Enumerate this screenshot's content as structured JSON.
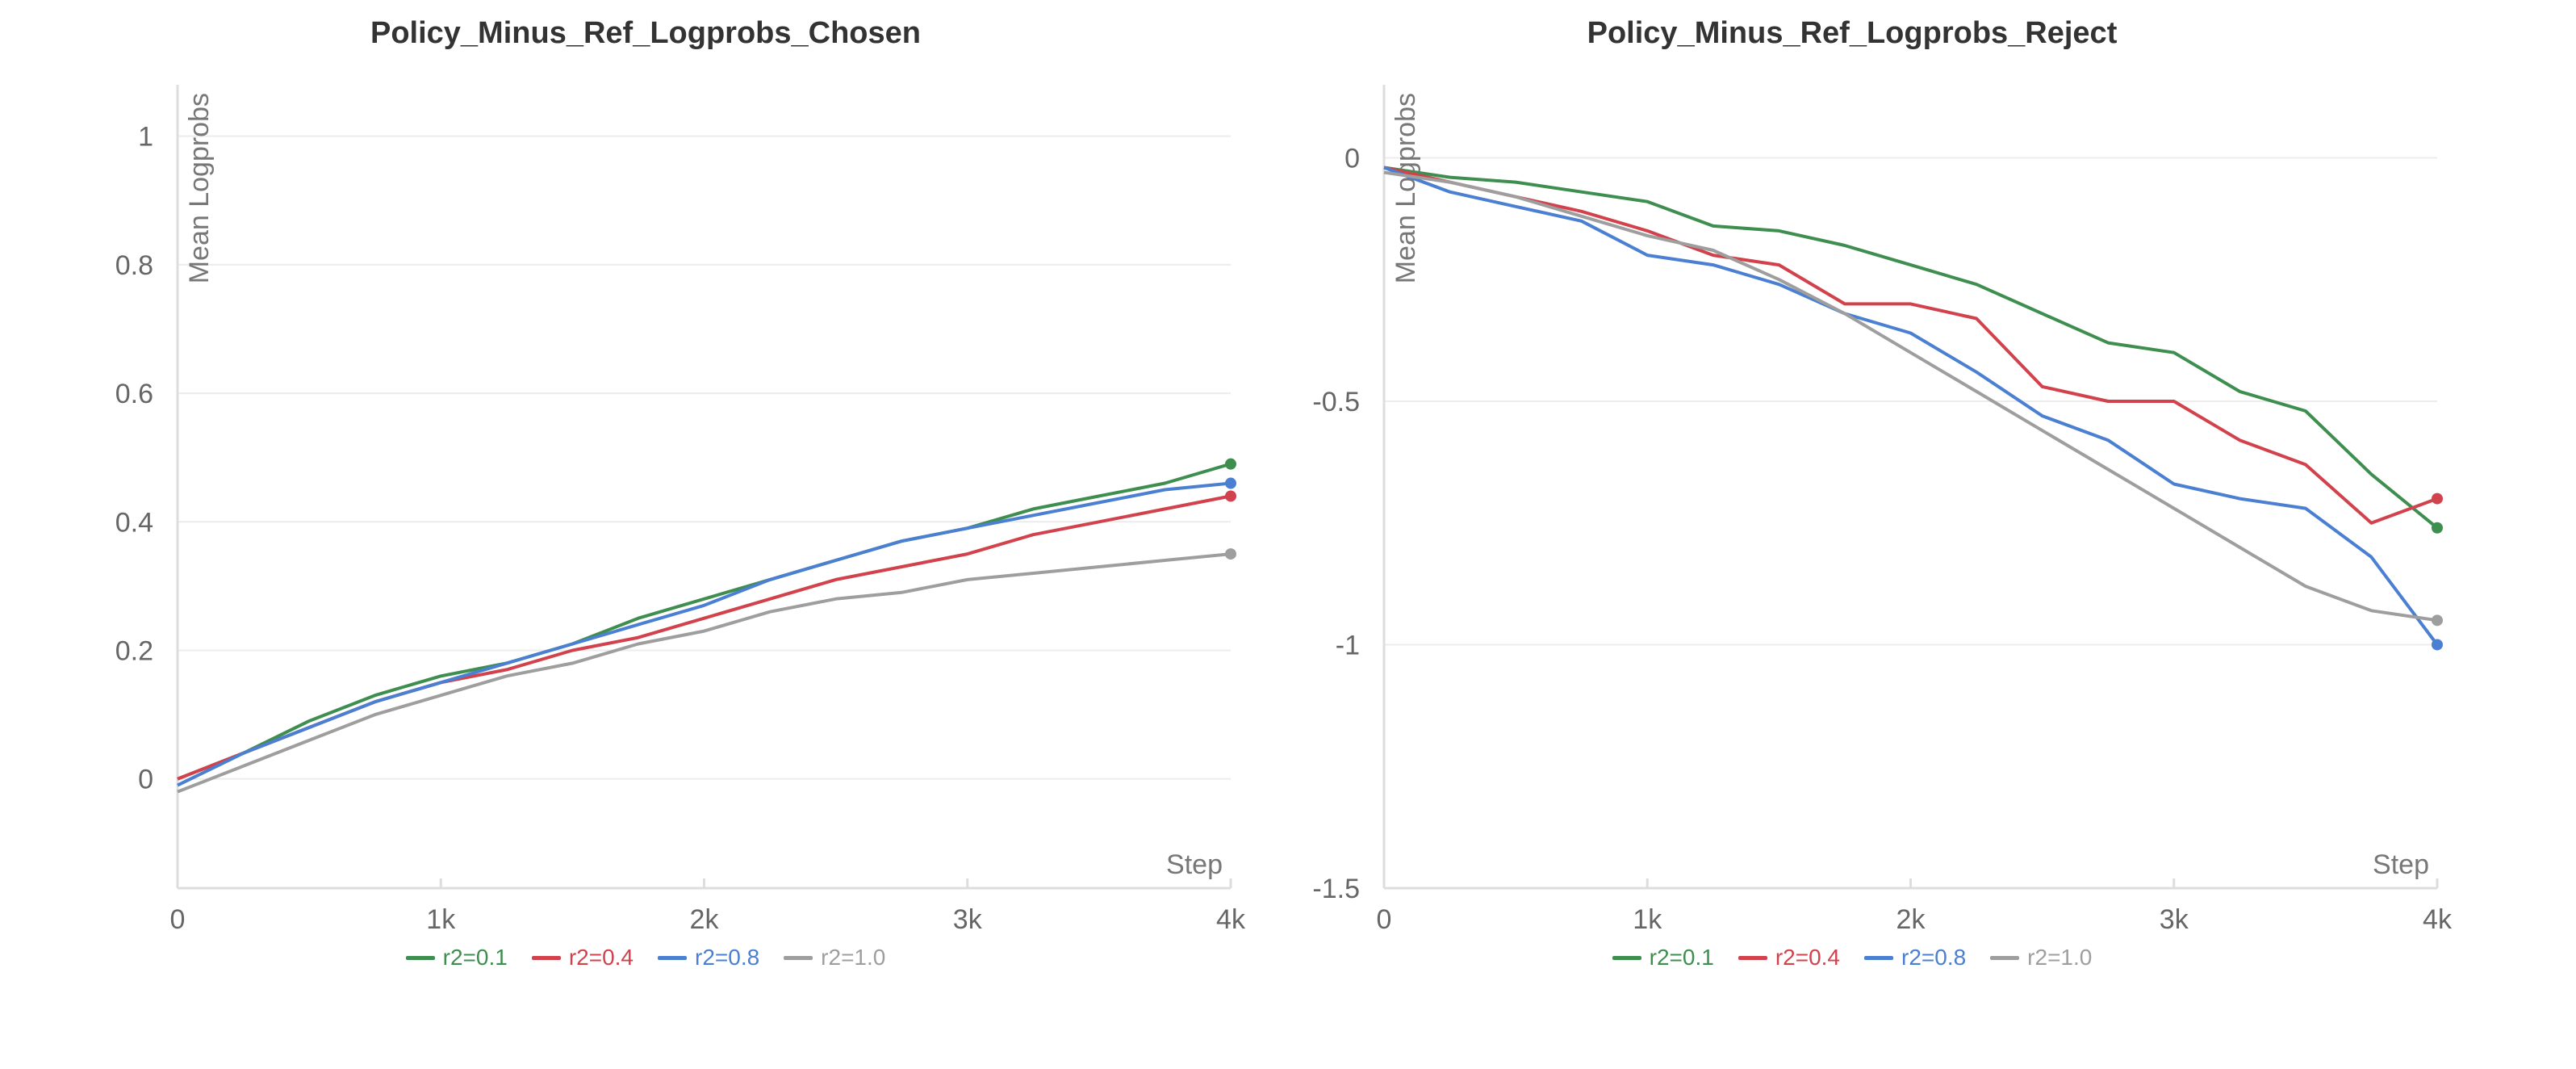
{
  "chart_data": [
    {
      "type": "line",
      "title": "Policy_Minus_Ref_Logprobs_Chosen",
      "xlabel": "Step",
      "ylabel": "Mean Logprobs",
      "xlim": [
        0,
        4000
      ],
      "ylim": [
        -0.17,
        1.08
      ],
      "x_ticks": [
        0,
        1000,
        2000,
        3000,
        4000
      ],
      "x_tick_labels": [
        "0",
        "1k",
        "2k",
        "3k",
        "4k"
      ],
      "y_ticks": [
        0,
        0.2,
        0.4,
        0.6,
        0.8,
        1
      ],
      "y_tick_labels": [
        "0",
        "0.2",
        "0.4",
        "0.6",
        "0.8",
        "1"
      ],
      "grid": true,
      "legend_position": "bottom",
      "x": [
        0,
        250,
        500,
        750,
        1000,
        1250,
        1500,
        1750,
        2000,
        2250,
        2500,
        2750,
        3000,
        3250,
        3500,
        3750,
        4000
      ],
      "series": [
        {
          "name": "r2=0.1",
          "color": "#3e8e4f",
          "values": [
            0.0,
            0.04,
            0.09,
            0.13,
            0.16,
            0.18,
            0.21,
            0.25,
            0.28,
            0.31,
            0.34,
            0.37,
            0.39,
            0.42,
            0.44,
            0.46,
            0.49
          ]
        },
        {
          "name": "r2=0.4",
          "color": "#d1424c",
          "values": [
            0.0,
            0.04,
            0.08,
            0.12,
            0.15,
            0.17,
            0.2,
            0.22,
            0.25,
            0.28,
            0.31,
            0.33,
            0.35,
            0.38,
            0.4,
            0.42,
            0.44
          ]
        },
        {
          "name": "r2=0.8",
          "color": "#4a7fd1",
          "values": [
            -0.01,
            0.04,
            0.08,
            0.12,
            0.15,
            0.18,
            0.21,
            0.24,
            0.27,
            0.31,
            0.34,
            0.37,
            0.39,
            0.41,
            0.43,
            0.45,
            0.46
          ]
        },
        {
          "name": "r2=1.0",
          "color": "#9e9e9e",
          "values": [
            -0.02,
            0.02,
            0.06,
            0.1,
            0.13,
            0.16,
            0.18,
            0.21,
            0.23,
            0.26,
            0.28,
            0.29,
            0.31,
            0.32,
            0.33,
            0.34,
            0.35
          ]
        }
      ]
    },
    {
      "type": "line",
      "title": "Policy_Minus_Ref_Logprobs_Reject",
      "xlabel": "Step",
      "ylabel": "Mean Logprobs",
      "xlim": [
        0,
        4000
      ],
      "ylim": [
        -1.5,
        0.15
      ],
      "x_ticks": [
        0,
        1000,
        2000,
        3000,
        4000
      ],
      "x_tick_labels": [
        "0",
        "1k",
        "2k",
        "3k",
        "4k"
      ],
      "y_ticks": [
        -1.5,
        -1,
        -0.5,
        0
      ],
      "y_tick_labels": [
        "-1.5",
        "-1",
        "-0.5",
        "0"
      ],
      "grid": true,
      "legend_position": "bottom",
      "x": [
        0,
        250,
        500,
        750,
        1000,
        1250,
        1500,
        1750,
        2000,
        2250,
        2500,
        2750,
        3000,
        3250,
        3500,
        3750,
        4000
      ],
      "series": [
        {
          "name": "r2=0.1",
          "color": "#3e8e4f",
          "values": [
            -0.02,
            -0.04,
            -0.05,
            -0.07,
            -0.09,
            -0.14,
            -0.15,
            -0.18,
            -0.22,
            -0.26,
            -0.32,
            -0.38,
            -0.4,
            -0.48,
            -0.52,
            -0.65,
            -0.76
          ]
        },
        {
          "name": "r2=0.4",
          "color": "#d1424c",
          "values": [
            -0.02,
            -0.05,
            -0.08,
            -0.11,
            -0.15,
            -0.2,
            -0.22,
            -0.3,
            -0.3,
            -0.33,
            -0.47,
            -0.5,
            -0.5,
            -0.58,
            -0.63,
            -0.75,
            -0.7
          ]
        },
        {
          "name": "r2=0.8",
          "color": "#4a7fd1",
          "values": [
            -0.02,
            -0.07,
            -0.1,
            -0.13,
            -0.2,
            -0.22,
            -0.26,
            -0.32,
            -0.36,
            -0.44,
            -0.53,
            -0.58,
            -0.67,
            -0.7,
            -0.72,
            -0.82,
            -1.0
          ]
        },
        {
          "name": "r2=1.0",
          "color": "#9e9e9e",
          "values": [
            -0.03,
            -0.05,
            -0.08,
            -0.12,
            -0.16,
            -0.19,
            -0.25,
            -0.32,
            -0.4,
            -0.48,
            -0.56,
            -0.64,
            -0.72,
            -0.8,
            -0.88,
            -0.93,
            -0.95
          ]
        }
      ]
    }
  ]
}
